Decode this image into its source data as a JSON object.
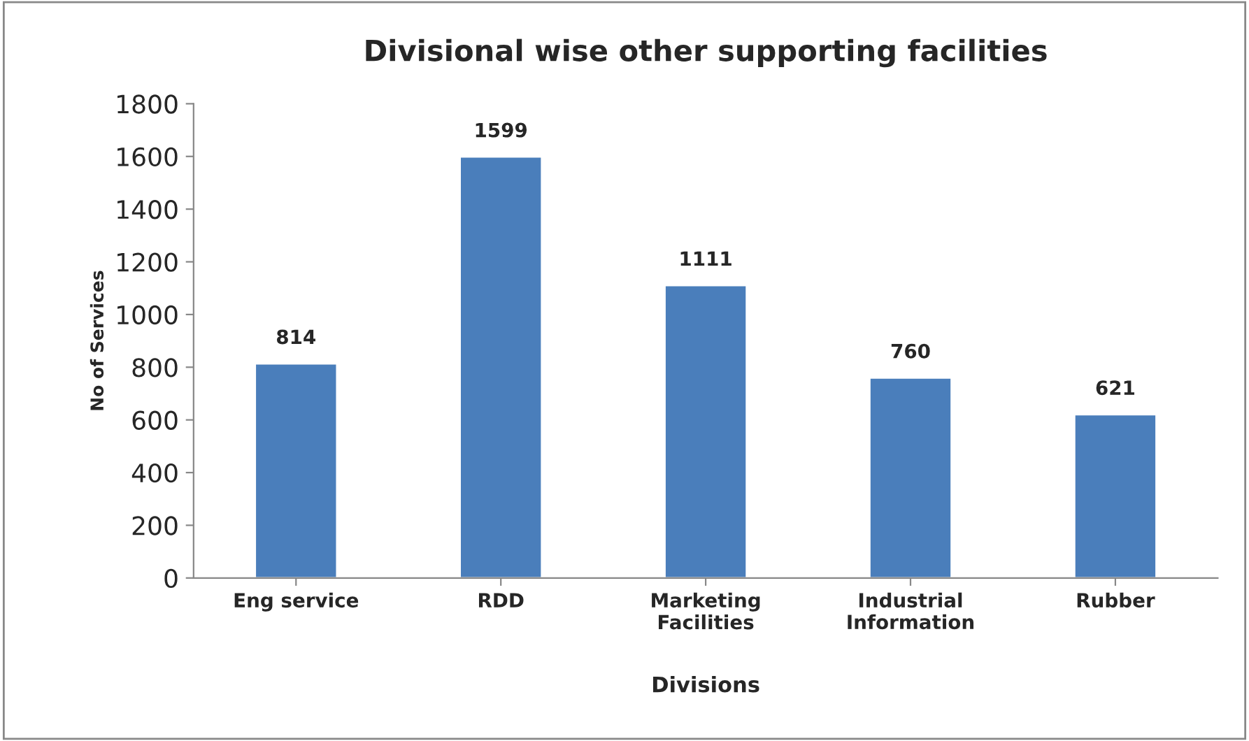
{
  "chart_data": {
    "type": "bar",
    "title": "Divisional wise other supporting facilities",
    "xlabel": "Divisions",
    "ylabel": "No of Services",
    "categories": [
      "Eng service",
      "RDD",
      "Marketing\nFacilities",
      "Industrial\nInformation",
      "Rubber"
    ],
    "values": [
      814,
      1599,
      1111,
      760,
      621
    ],
    "color": "#4a7ebb",
    "ylim": [
      0,
      1800
    ],
    "yticks": [
      0,
      200,
      400,
      600,
      800,
      1000,
      1200,
      1400,
      1600,
      1800
    ],
    "data_labels": true,
    "grid": false
  }
}
